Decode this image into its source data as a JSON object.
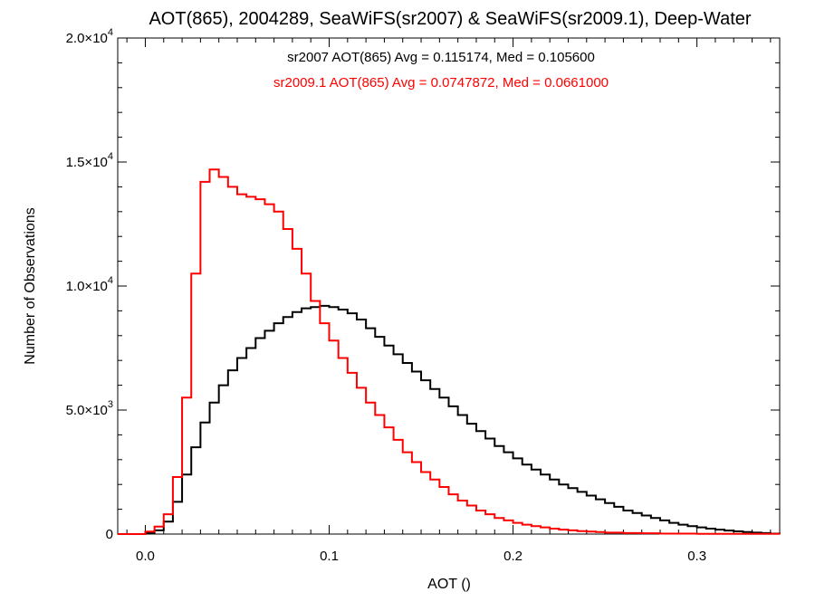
{
  "chart_data": {
    "type": "line",
    "step": true,
    "title": "AOT(865), 2004289, SeaWiFS(sr2007) & SeaWiFS(sr2009.1), Deep-Water",
    "xlabel": "AOT ()",
    "ylabel": "Number of Observations",
    "xlim": [
      -0.015,
      0.345
    ],
    "ylim": [
      0,
      20000
    ],
    "grid": false,
    "xticks": [
      {
        "value": 0.0,
        "label": "0.0"
      },
      {
        "value": 0.1,
        "label": "0.1"
      },
      {
        "value": 0.2,
        "label": "0.2"
      },
      {
        "value": 0.3,
        "label": "0.3"
      }
    ],
    "yticks": [
      {
        "value": 0,
        "mant": "0",
        "exp": ""
      },
      {
        "value": 5000,
        "mant": "5.0×10",
        "exp": "3"
      },
      {
        "value": 10000,
        "mant": "1.0×10",
        "exp": "4"
      },
      {
        "value": 15000,
        "mant": "1.5×10",
        "exp": "4"
      },
      {
        "value": 20000,
        "mant": "2.0×10",
        "exp": "4"
      }
    ],
    "annotations": [
      {
        "text": "sr2007 AOT(865) Avg = 0.115174, Med = 0.105600",
        "color": "#000000"
      },
      {
        "text": "sr2009.1 AOT(865) Avg = 0.0747872, Med = 0.0661000",
        "color": "#ff0000"
      }
    ],
    "series": [
      {
        "color": "#000000",
        "points": [
          [
            -0.015,
            0
          ],
          [
            0.0,
            50
          ],
          [
            0.005,
            150
          ],
          [
            0.01,
            500
          ],
          [
            0.015,
            1300
          ],
          [
            0.02,
            2400
          ],
          [
            0.025,
            3500
          ],
          [
            0.03,
            4500
          ],
          [
            0.035,
            5300
          ],
          [
            0.04,
            6000
          ],
          [
            0.045,
            6600
          ],
          [
            0.05,
            7100
          ],
          [
            0.055,
            7500
          ],
          [
            0.06,
            7900
          ],
          [
            0.065,
            8200
          ],
          [
            0.07,
            8500
          ],
          [
            0.075,
            8750
          ],
          [
            0.08,
            8950
          ],
          [
            0.085,
            9100
          ],
          [
            0.09,
            9150
          ],
          [
            0.095,
            9200
          ],
          [
            0.1,
            9150
          ],
          [
            0.105,
            9050
          ],
          [
            0.11,
            8900
          ],
          [
            0.115,
            8650
          ],
          [
            0.12,
            8300
          ],
          [
            0.125,
            7950
          ],
          [
            0.13,
            7600
          ],
          [
            0.135,
            7250
          ],
          [
            0.14,
            6900
          ],
          [
            0.145,
            6550
          ],
          [
            0.15,
            6200
          ],
          [
            0.155,
            5850
          ],
          [
            0.16,
            5500
          ],
          [
            0.165,
            5150
          ],
          [
            0.17,
            4800
          ],
          [
            0.175,
            4450
          ],
          [
            0.18,
            4150
          ],
          [
            0.185,
            3850
          ],
          [
            0.19,
            3550
          ],
          [
            0.195,
            3300
          ],
          [
            0.2,
            3050
          ],
          [
            0.205,
            2800
          ],
          [
            0.21,
            2600
          ],
          [
            0.215,
            2400
          ],
          [
            0.22,
            2200
          ],
          [
            0.225,
            2000
          ],
          [
            0.23,
            1850
          ],
          [
            0.235,
            1700
          ],
          [
            0.24,
            1550
          ],
          [
            0.245,
            1400
          ],
          [
            0.25,
            1250
          ],
          [
            0.255,
            1100
          ],
          [
            0.26,
            950
          ],
          [
            0.265,
            850
          ],
          [
            0.27,
            750
          ],
          [
            0.275,
            650
          ],
          [
            0.28,
            550
          ],
          [
            0.285,
            450
          ],
          [
            0.29,
            380
          ],
          [
            0.295,
            320
          ],
          [
            0.3,
            270
          ],
          [
            0.305,
            220
          ],
          [
            0.31,
            180
          ],
          [
            0.315,
            140
          ],
          [
            0.32,
            110
          ],
          [
            0.325,
            80
          ],
          [
            0.33,
            60
          ],
          [
            0.335,
            40
          ],
          [
            0.34,
            20
          ],
          [
            0.345,
            10
          ]
        ]
      },
      {
        "color": "#ff0000",
        "points": [
          [
            -0.015,
            0
          ],
          [
            0.0,
            100
          ],
          [
            0.005,
            300
          ],
          [
            0.01,
            800
          ],
          [
            0.015,
            2300
          ],
          [
            0.02,
            5500
          ],
          [
            0.025,
            10500
          ],
          [
            0.03,
            14200
          ],
          [
            0.035,
            14700
          ],
          [
            0.04,
            14400
          ],
          [
            0.045,
            14000
          ],
          [
            0.05,
            13700
          ],
          [
            0.055,
            13600
          ],
          [
            0.06,
            13500
          ],
          [
            0.065,
            13300
          ],
          [
            0.07,
            13000
          ],
          [
            0.075,
            12300
          ],
          [
            0.08,
            11500
          ],
          [
            0.085,
            10500
          ],
          [
            0.09,
            9400
          ],
          [
            0.095,
            8500
          ],
          [
            0.1,
            7800
          ],
          [
            0.105,
            7100
          ],
          [
            0.11,
            6500
          ],
          [
            0.115,
            5900
          ],
          [
            0.12,
            5300
          ],
          [
            0.125,
            4800
          ],
          [
            0.13,
            4300
          ],
          [
            0.135,
            3800
          ],
          [
            0.14,
            3300
          ],
          [
            0.145,
            2900
          ],
          [
            0.15,
            2500
          ],
          [
            0.155,
            2200
          ],
          [
            0.16,
            1900
          ],
          [
            0.165,
            1600
          ],
          [
            0.17,
            1350
          ],
          [
            0.175,
            1150
          ],
          [
            0.18,
            950
          ],
          [
            0.185,
            800
          ],
          [
            0.19,
            650
          ],
          [
            0.195,
            550
          ],
          [
            0.2,
            450
          ],
          [
            0.205,
            380
          ],
          [
            0.21,
            320
          ],
          [
            0.215,
            270
          ],
          [
            0.22,
            220
          ],
          [
            0.225,
            180
          ],
          [
            0.23,
            150
          ],
          [
            0.235,
            120
          ],
          [
            0.24,
            100
          ],
          [
            0.245,
            80
          ],
          [
            0.25,
            60
          ],
          [
            0.26,
            40
          ],
          [
            0.27,
            30
          ],
          [
            0.28,
            20
          ],
          [
            0.3,
            10
          ],
          [
            0.345,
            0
          ]
        ]
      }
    ]
  }
}
